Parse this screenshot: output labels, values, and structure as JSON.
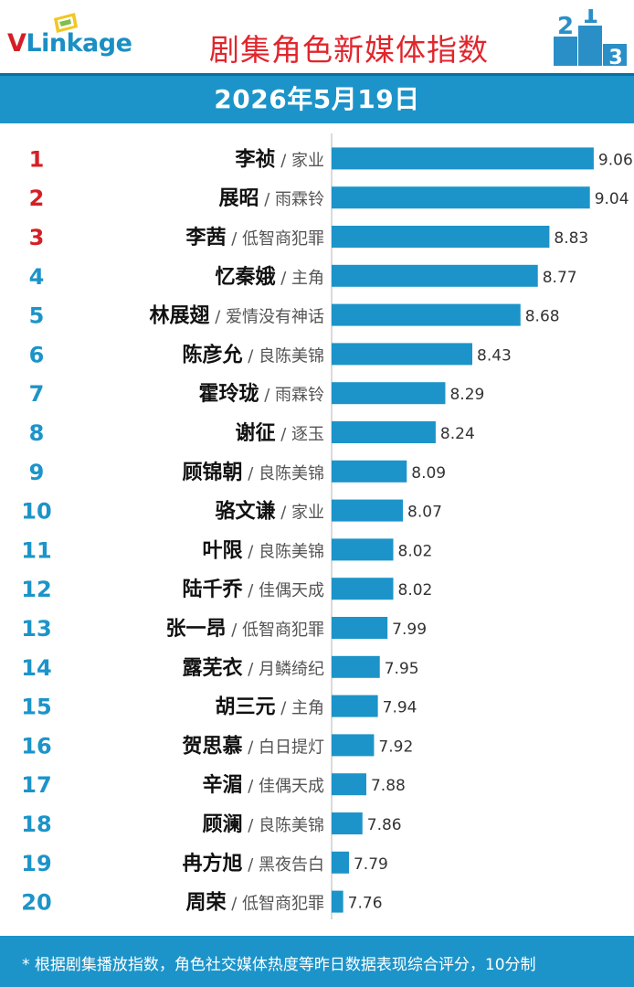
{
  "header": {
    "logo_v": "V",
    "logo_rest": "Linkage",
    "title": "剧集角色新媒体指数",
    "podium_labels": [
      "2",
      "1",
      "3"
    ]
  },
  "date": "2026年5月19日",
  "footer": {
    "note": "* 根据剧集播放指数，角色社交媒体热度等昨日数据表现综合评分，10分制"
  },
  "colors": {
    "bar": "#1c94c9",
    "rank_top3": "#d51f26",
    "rank_other": "#1c94c9",
    "title": "#e0262d"
  },
  "chart_data": {
    "type": "bar",
    "orientation": "horizontal",
    "title": "剧集角色新媒体指数",
    "xlim": [
      7.7,
      9.25
    ],
    "rows": [
      {
        "rank": "1",
        "name": "李祯",
        "drama": "家业",
        "value": 9.06
      },
      {
        "rank": "2",
        "name": "展昭",
        "drama": "雨霖铃",
        "value": 9.04
      },
      {
        "rank": "3",
        "name": "李茜",
        "drama": "低智商犯罪",
        "value": 8.83
      },
      {
        "rank": "4",
        "name": "忆秦娥",
        "drama": "主角",
        "value": 8.77
      },
      {
        "rank": "5",
        "name": "林展翅",
        "drama": "爱情没有神话",
        "value": 8.68
      },
      {
        "rank": "6",
        "name": "陈彦允",
        "drama": "良陈美锦",
        "value": 8.43
      },
      {
        "rank": "7",
        "name": "霍玲珑",
        "drama": "雨霖铃",
        "value": 8.29
      },
      {
        "rank": "8",
        "name": "谢征",
        "drama": "逐玉",
        "value": 8.24
      },
      {
        "rank": "9",
        "name": "顾锦朝",
        "drama": "良陈美锦",
        "value": 8.09
      },
      {
        "rank": "10",
        "name": "骆文谦",
        "drama": "家业",
        "value": 8.07
      },
      {
        "rank": "11",
        "name": "叶限",
        "drama": "良陈美锦",
        "value": 8.02
      },
      {
        "rank": "12",
        "name": "陆千乔",
        "drama": "佳偶天成",
        "value": 8.02
      },
      {
        "rank": "13",
        "name": "张一昂",
        "drama": "低智商犯罪",
        "value": 7.99
      },
      {
        "rank": "14",
        "name": "露芜衣",
        "drama": "月鳞绮纪",
        "value": 7.95
      },
      {
        "rank": "15",
        "name": "胡三元",
        "drama": "主角",
        "value": 7.94
      },
      {
        "rank": "16",
        "name": "贺思慕",
        "drama": "白日提灯",
        "value": 7.92
      },
      {
        "rank": "17",
        "name": "辛湄",
        "drama": "佳偶天成",
        "value": 7.88
      },
      {
        "rank": "18",
        "name": "顾澜",
        "drama": "良陈美锦",
        "value": 7.86
      },
      {
        "rank": "19",
        "name": "冉方旭",
        "drama": "黑夜告白",
        "value": 7.79
      },
      {
        "rank": "20",
        "name": "周荣",
        "drama": "低智商犯罪",
        "value": 7.76
      }
    ]
  }
}
